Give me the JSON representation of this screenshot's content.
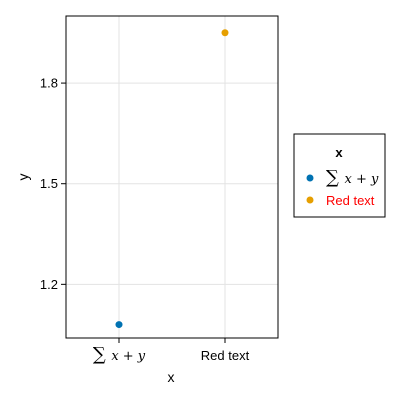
{
  "chart_data": {
    "type": "scatter",
    "title": "",
    "xlabel": "x",
    "ylabel": "y",
    "categories": [
      {
        "sigma": "∑",
        "expr": "x + y",
        "color": "#000000"
      },
      {
        "label": "Red text",
        "color": "#ff0000"
      }
    ],
    "series": [
      {
        "category_index": 0,
        "y": 1.08,
        "color": "#0072b2"
      },
      {
        "category_index": 1,
        "y": 1.95,
        "color": "#e69f00"
      }
    ],
    "yticks": [
      1.2,
      1.5,
      1.8
    ],
    "ylim": [
      1.04,
      2.0
    ],
    "grid": true,
    "legend": {
      "title": "x",
      "placement": "right",
      "entries": [
        {
          "sigma": "∑",
          "expr": "x + y",
          "text_color": "#000000",
          "marker_color": "#0072b2"
        },
        {
          "label": "Red text",
          "text_color": "#ff0000",
          "marker_color": "#e69f00"
        }
      ]
    }
  }
}
